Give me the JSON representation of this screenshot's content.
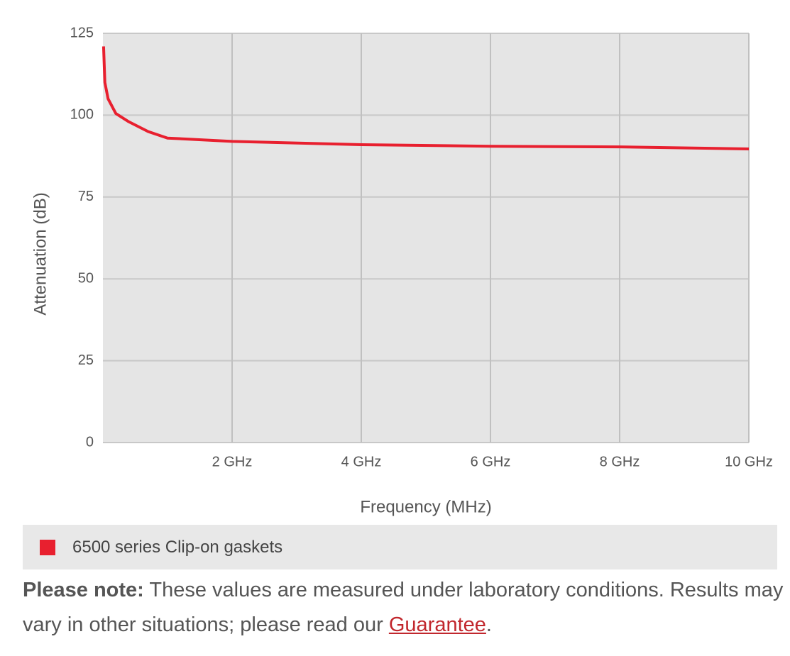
{
  "chart_data": {
    "type": "line",
    "x_label": "Frequency (MHz)",
    "y_label": "Attenuation (dB)",
    "x": [
      10,
      30,
      80,
      200,
      400,
      700,
      1000,
      2000,
      4000,
      6000,
      8000,
      10000
    ],
    "series": [
      {
        "name": "6500 series Clip-on gaskets",
        "color": "#e8202f",
        "values": [
          121,
          110,
          105,
          100.5,
          98,
          95,
          93,
          92,
          91,
          90.5,
          90.3,
          89.7
        ]
      }
    ],
    "xlim": [
      0,
      10000
    ],
    "xticks": [
      {
        "value": 2000,
        "label": "2 GHz"
      },
      {
        "value": 4000,
        "label": "4 GHz"
      },
      {
        "value": 6000,
        "label": "6 GHz"
      },
      {
        "value": 8000,
        "label": "8 GHz"
      },
      {
        "value": 10000,
        "label": "10 GHz"
      }
    ],
    "ylim": [
      0,
      125
    ],
    "yticks": [
      0,
      25,
      50,
      75,
      100,
      125
    ],
    "grid": true
  },
  "note": {
    "bold": "Please note:",
    "text": "These values are measured under laboratory conditions. Results may vary in other situations; please read our",
    "link": "Guarantee",
    "end": "."
  }
}
